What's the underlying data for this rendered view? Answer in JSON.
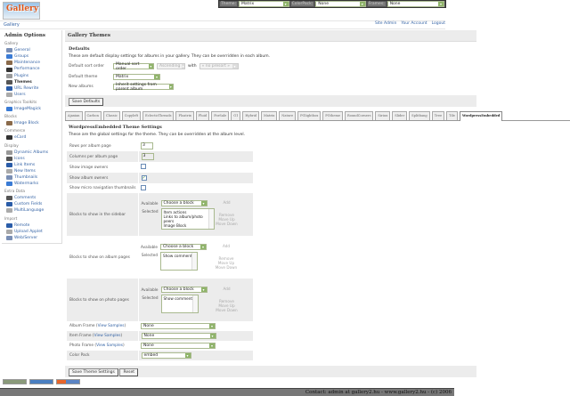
{
  "logo": {
    "text": "Gallery"
  },
  "topbar": {
    "theme_label": "Theme:",
    "theme_value": "Matrix",
    "colorpack_label": "ColorPack:",
    "colorpack_value": "None",
    "frames_label": "Frames:",
    "frames_value": "None"
  },
  "breadcrumb": "Gallery",
  "toplinks": [
    "Site Admin",
    "Your Account",
    "Logout"
  ],
  "sidebar": {
    "title": "Admin Options",
    "sections": [
      {
        "label": "Gallery",
        "items": [
          "General",
          "Groups",
          "Maintenance",
          "Performance",
          "Plugins",
          "Themes",
          "URL Rewrite",
          "Users"
        ]
      },
      {
        "label": "Graphics Toolkits",
        "items": [
          "ImageMagick"
        ]
      },
      {
        "label": "Blocks",
        "items": [
          "Image Block"
        ]
      },
      {
        "label": "Commerce",
        "items": [
          "eCard"
        ]
      },
      {
        "label": "Display",
        "items": [
          "Dynamic Albums",
          "Icons",
          "Link Items",
          "New Items",
          "Thumbnails",
          "Watermarks"
        ]
      },
      {
        "label": "Extra Data",
        "items": [
          "Comments",
          "Custom Fields",
          "MultiLanguage"
        ]
      },
      {
        "label": "Import",
        "items": [
          "Remote",
          "Upload Applet",
          "Web/Server"
        ]
      }
    ],
    "current": "Themes"
  },
  "main": {
    "title": "Gallery Themes",
    "defaults_heading": "Defaults",
    "defaults_desc": "These are default display settings for albums in your gallery. They can be overridden in each album.",
    "sort_label": "Default sort order",
    "sort_value": "Manual sort order",
    "sort_dir": "Ascending",
    "with_label": "with",
    "presort": "« no presort »",
    "theme_label": "Default theme",
    "theme_value": "Matrix",
    "new_label": "New albums",
    "new_value": "Inherit settings from parent album",
    "save_defaults": "Save Defaults"
  },
  "tabs": [
    "Ajaxian",
    "Carbon",
    "Classic",
    "Copyleft",
    "EclecticThreads",
    "Floatrix",
    "Fluid",
    "ForSale",
    "G1",
    "Hybrid",
    "Matrix",
    "Nature",
    "PGlightbox",
    "PGtheme",
    "RoundCorners",
    "Siriux",
    "Slider",
    "Splitbang",
    "Tree",
    "Tile",
    "WordpressEmbedded"
  ],
  "active_tab": "WordpressEmbedded",
  "theme_settings": {
    "title": "WordpressEmbedded Theme Settings",
    "desc": "These are the global settings for the theme. They can be overridden at the album level.",
    "rows_label": "Rows per album page",
    "rows_value": "3",
    "cols_label": "Columns per album page",
    "cols_value": "3",
    "image_owners_label": "Show image owners",
    "image_owners": false,
    "album_owners_label": "Show album owners",
    "album_owners": true,
    "micro_label": "Show micro navigation thumbnails",
    "micro": false,
    "available_label": "Available",
    "selected_label": "Selected",
    "choose": "Choose a block",
    "add": "Add",
    "remove": "Remove",
    "move_up": "Move Up",
    "move_down": "Move Down",
    "sidebar_blocks_label": "Blocks to show in the sidebar",
    "sidebar_blocks": [
      "Item actions",
      "Links to album/photo peers",
      "Image Block"
    ],
    "album_blocks_label": "Blocks to show on album pages",
    "album_blocks": [
      "Show comments"
    ],
    "photo_blocks_label": "Blocks to show on photo pages",
    "photo_blocks": [
      "Show comments"
    ],
    "view_samples": "View Samples",
    "album_frame_label": "Album Frame",
    "album_frame": "None",
    "item_frame_label": "Item Frame",
    "item_frame": "None",
    "photo_frame_label": "Photo Frame",
    "photo_frame": "None",
    "colorpack_label": "Color Pack",
    "colorpack": "embed",
    "save": "Save Theme Settings",
    "reset": "Reset"
  },
  "footer": "Contact: admin at gallery2.hu - www.gallery2.hu - (c) 2006"
}
